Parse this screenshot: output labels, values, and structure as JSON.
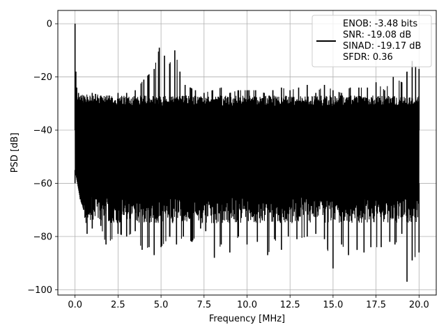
{
  "chart_data": {
    "type": "line",
    "xlabel": "Frequency [MHz]",
    "ylabel": "PSD [dB]",
    "xlim": [
      -1.0,
      21.0
    ],
    "ylim": [
      -102.0,
      5.0
    ],
    "x_ticks": [
      0.0,
      2.5,
      5.0,
      7.5,
      10.0,
      12.5,
      15.0,
      17.5,
      20.0
    ],
    "x_tick_labels": [
      "0.0",
      "2.5",
      "5.0",
      "7.5",
      "10.0",
      "12.5",
      "15.0",
      "17.5",
      "20.0"
    ],
    "y_ticks": [
      0,
      -20,
      -40,
      -60,
      -80,
      -100
    ],
    "y_tick_labels": [
      "0",
      "−20",
      "−40",
      "−60",
      "−80",
      "−100"
    ],
    "grid": true,
    "legend_position": "top-right",
    "line_color": "#000000",
    "legend": {
      "lines": [
        "ENOB: -3.48 bits",
        "SNR: -19.08 dB",
        "SINAD: -19.17 dB",
        "SFDR: 0.36"
      ]
    },
    "series": [
      {
        "upper_envelope": {
          "x": [
            0.0,
            0.05,
            0.1,
            0.2,
            0.5,
            1.0,
            1.5,
            2.0,
            2.5,
            3.0,
            3.5,
            4.0,
            4.3,
            4.6,
            4.9,
            5.2,
            5.5,
            5.8,
            6.1,
            6.4,
            6.7,
            7.0,
            7.5,
            8.0,
            8.5,
            9.0,
            9.5,
            10.0,
            10.5,
            11.0,
            11.5,
            12.0,
            12.5,
            13.0,
            13.5,
            14.0,
            14.5,
            15.0,
            15.5,
            16.0,
            16.5,
            17.0,
            17.5,
            18.0,
            18.5,
            19.0,
            19.3,
            19.6,
            19.8,
            20.0
          ],
          "y": [
            0,
            -18,
            -24,
            -26,
            -27,
            -26,
            -27,
            -27,
            -26,
            -26,
            -25,
            -21,
            -19,
            -17,
            -9,
            -12,
            -15,
            -10,
            -18,
            -23,
            -24,
            -25,
            -26,
            -25,
            -24,
            -26,
            -25,
            -25,
            -25,
            -26,
            -25,
            -24,
            -25,
            -24,
            -23,
            -26,
            -23,
            -25,
            -26,
            -24,
            -24,
            -24,
            -22,
            -25,
            -20,
            -22,
            -18,
            -14,
            -16,
            -17
          ]
        },
        "lower_envelope": {
          "x": [
            0.0,
            0.3,
            0.5,
            0.7,
            1.0,
            1.5,
            1.8,
            2.5,
            3.0,
            3.5,
            3.9,
            4.3,
            4.6,
            5.0,
            5.5,
            5.9,
            6.3,
            6.8,
            7.3,
            7.6,
            8.1,
            8.5,
            9.0,
            9.5,
            10.0,
            10.6,
            11.2,
            11.6,
            12.0,
            12.4,
            12.9,
            13.5,
            14.0,
            14.5,
            15.0,
            15.5,
            15.9,
            16.4,
            16.8,
            17.2,
            17.8,
            18.3,
            18.6,
            19.0,
            19.3,
            19.6,
            20.0
          ],
          "y": [
            -55,
            -66,
            -70,
            -79,
            -77,
            -76,
            -83,
            -79,
            -80,
            -78,
            -85,
            -84,
            -87,
            -84,
            -80,
            -83,
            -80,
            -82,
            -77,
            -78,
            -88,
            -83,
            -86,
            -80,
            -83,
            -82,
            -87,
            -81,
            -85,
            -80,
            -81,
            -80,
            -79,
            -81,
            -92,
            -83,
            -87,
            -85,
            -86,
            -84,
            -84,
            -82,
            -83,
            -79,
            -97,
            -89,
            -86
          ]
        },
        "band_top": -27,
        "band_bottom": -70
      }
    ]
  }
}
